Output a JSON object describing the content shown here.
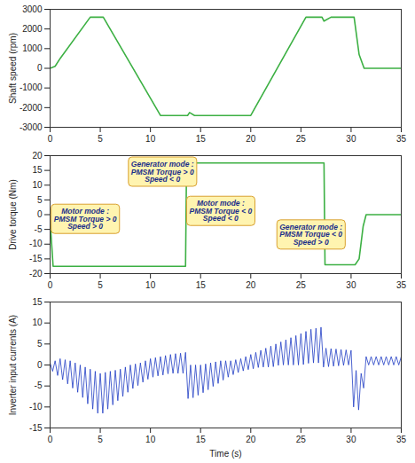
{
  "chart_data": [
    {
      "type": "line",
      "ylabel": "Shaft speed (rpm)",
      "color": "#3cb043",
      "x": [
        0,
        0.5,
        1,
        4,
        5.3,
        11,
        13.7,
        13.9,
        14.4,
        20,
        25.5,
        27.1,
        27.3,
        28,
        30.3,
        30.8,
        31.3,
        35
      ],
      "values": [
        0,
        100,
        500,
        2600,
        2600,
        -2400,
        -2400,
        -2250,
        -2400,
        -2400,
        2600,
        2600,
        2400,
        2600,
        2600,
        700,
        0,
        0
      ],
      "xlim": [
        0,
        35
      ],
      "xticks": [
        0,
        5,
        10,
        15,
        20,
        25,
        30,
        35
      ],
      "ylim": [
        -3000,
        3000
      ],
      "yticks": [
        -3000,
        -2000,
        -1000,
        0,
        1000,
        2000,
        3000
      ]
    },
    {
      "type": "line",
      "ylabel": "Drive torque (Nm)",
      "color": "#3cb043",
      "x": [
        0,
        0.3,
        13.5,
        13.6,
        27.3,
        27.4,
        30.4,
        30.8,
        31.2,
        31.5,
        35
      ],
      "values": [
        -2,
        -17.5,
        -17.5,
        17.5,
        17.5,
        -17,
        -17,
        -15,
        -4,
        0,
        0
      ],
      "xlim": [
        0,
        35
      ],
      "xticks": [
        0,
        5,
        10,
        15,
        20,
        25,
        30,
        35
      ],
      "ylim": [
        -20,
        20
      ],
      "yticks": [
        -20,
        -15,
        -10,
        -5,
        0,
        5,
        10,
        15,
        20
      ],
      "annotations": [
        {
          "text": [
            "Motor mode :",
            "PMSM Torque > 0",
            "Speed > 0"
          ],
          "x": 3.5,
          "y": -1.5
        },
        {
          "text": [
            "Generator mode :",
            "PMSM Torque > 0",
            "Speed < 0"
          ],
          "x": 11.2,
          "y": 14.5
        },
        {
          "text": [
            "Motor mode :",
            "PMSM Torque < 0",
            "Speed < 0"
          ],
          "x": 17,
          "y": 1.2
        },
        {
          "text": [
            "Generator mode :",
            "PMSM Torque < 0",
            "Speed > 0"
          ],
          "x": 26,
          "y": -6.8
        }
      ]
    },
    {
      "type": "line",
      "ylabel": "Inverter input currents (A)",
      "xlabel": "Time (s)",
      "color": "#1f3cc4",
      "x": [
        0,
        0.25,
        0.5,
        0.75,
        1,
        1.25,
        1.5,
        1.75,
        2,
        2.25,
        2.5,
        2.75,
        3,
        3.25,
        3.5,
        3.75,
        4,
        4.25,
        4.5,
        4.75,
        5,
        5.25,
        5.5,
        5.75,
        6,
        6.25,
        6.5,
        6.75,
        7,
        7.25,
        7.5,
        7.75,
        8,
        8.25,
        8.5,
        8.75,
        9,
        9.25,
        9.5,
        9.75,
        10,
        10.25,
        10.5,
        10.75,
        11,
        11.25,
        11.5,
        11.75,
        12,
        12.25,
        12.5,
        12.75,
        13,
        13.25,
        13.5,
        13.75,
        14,
        14.25,
        14.5,
        14.75,
        15,
        15.25,
        15.5,
        15.75,
        16,
        16.25,
        16.5,
        16.75,
        17,
        17.25,
        17.5,
        17.75,
        18,
        18.25,
        18.5,
        18.75,
        19,
        19.25,
        19.5,
        19.75,
        20,
        20.25,
        20.5,
        20.75,
        21,
        21.25,
        21.5,
        21.75,
        22,
        22.25,
        22.5,
        22.75,
        23,
        23.25,
        23.5,
        23.75,
        24,
        24.25,
        24.5,
        24.75,
        25,
        25.25,
        25.5,
        25.75,
        26,
        26.25,
        26.5,
        26.75,
        27,
        27.25,
        27.5,
        27.75,
        28,
        28.25,
        28.5,
        28.75,
        29,
        29.25,
        29.5,
        29.75,
        30,
        30.25,
        30.5,
        30.75,
        31,
        31.25,
        31.5,
        31.75,
        32,
        32.25,
        32.5,
        32.75,
        33,
        33.25,
        33.5,
        33.75,
        34,
        34.25,
        34.5,
        34.75,
        35
      ],
      "values": [
        0.5,
        -1.5,
        1,
        -2.5,
        1.5,
        -3.5,
        1.25,
        -4.5,
        1,
        -5.5,
        0.5,
        -6.5,
        0,
        -7.75,
        -0.5,
        -9.25,
        -1,
        -10.5,
        -1.5,
        -11.5,
        -2,
        -11.5,
        -1.75,
        -10.5,
        -1.5,
        -9.5,
        -1.25,
        -8.5,
        -1,
        -7.5,
        -0.5,
        -6.5,
        0,
        -5.6,
        0.25,
        -4.9,
        0.5,
        -4.1,
        1,
        -3.4,
        1.5,
        -2.9,
        1.75,
        -2.6,
        2,
        -2.4,
        2.25,
        -2.1,
        2.5,
        -2,
        2.7,
        -2,
        2.8,
        -2,
        3,
        -8,
        0,
        -7.8,
        0,
        -7.2,
        0,
        -6.6,
        0.25,
        -5.9,
        0.5,
        -5.1,
        0.75,
        -4.4,
        1,
        -3.6,
        1,
        -2.9,
        1,
        -2.3,
        1.25,
        -1.8,
        1.5,
        -1.4,
        2,
        -1.1,
        2.5,
        -0.9,
        3,
        -0.6,
        3.5,
        -0.5,
        4,
        -0.5,
        4.5,
        -0.4,
        5,
        -0.1,
        5.5,
        0,
        6,
        0,
        6.5,
        0,
        7,
        0,
        7.5,
        0.1,
        8,
        0.4,
        8.5,
        0.5,
        8.75,
        0.5,
        9,
        -0.5,
        4,
        -0.4,
        3.9,
        -0.3,
        3.8,
        -0.2,
        3.7,
        -0.1,
        3.6,
        0,
        3.5,
        -10,
        -1.3,
        -10.7,
        -2,
        -5.5,
        2,
        0,
        2,
        0,
        2,
        0,
        2,
        0,
        2,
        0,
        2,
        0,
        2,
        0,
        2
      ],
      "xlim": [
        0,
        35
      ],
      "xticks": [
        0,
        5,
        10,
        15,
        20,
        25,
        30,
        35
      ],
      "ylim": [
        -15,
        15
      ],
      "yticks": [
        -15,
        -10,
        -5,
        0,
        5,
        10,
        15
      ]
    }
  ]
}
